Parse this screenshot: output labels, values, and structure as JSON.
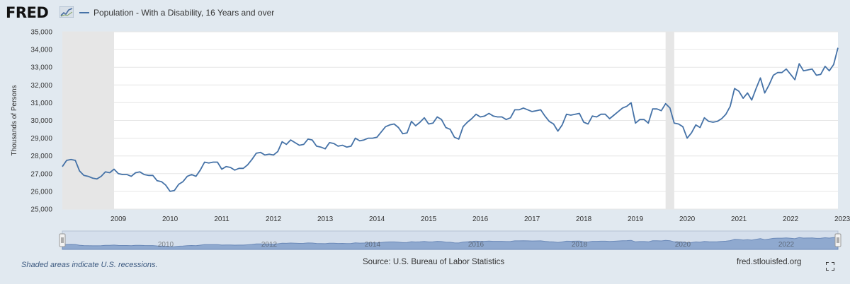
{
  "brand": {
    "logo_text": "FRED",
    "logo_icon": "chart-line-icon"
  },
  "legend": {
    "label": "Population - With a Disability, 16 Years and over",
    "color": "#4572a7"
  },
  "footer": {
    "recession_note": "Shaded areas indicate U.S. recessions.",
    "source": "Source: U.S. Bureau of Labor Statistics",
    "site": "fred.stlouisfed.org",
    "fullscreen_icon": "fullscreen-icon"
  },
  "navigator": {
    "labels": [
      "2010",
      "2012",
      "2014",
      "2016",
      "2018",
      "2020",
      "2022"
    ]
  },
  "chart_data": {
    "type": "line",
    "title": "",
    "xlabel": "",
    "ylabel": "Thousands of Persons",
    "ylim": [
      25000,
      35000
    ],
    "xlim": [
      "2008-06",
      "2023-06"
    ],
    "y_ticks": [
      "25,000",
      "26,000",
      "27,000",
      "28,000",
      "29,000",
      "30,000",
      "31,000",
      "32,000",
      "33,000",
      "34,000",
      "35,000"
    ],
    "x_ticks": [
      "2009",
      "2010",
      "2011",
      "2012",
      "2013",
      "2014",
      "2015",
      "2016",
      "2017",
      "2018",
      "2019",
      "2020",
      "2021",
      "2022",
      "2023"
    ],
    "recessions": [
      [
        "2008-06",
        "2009-06"
      ],
      [
        "2020-02",
        "2020-04"
      ]
    ],
    "grid": "horizontal",
    "colors": {
      "line": "#4572a7",
      "recession": "#e6e6e6"
    },
    "series": [
      {
        "name": "Population - With a Disability, 16 Years and over",
        "x": [
          "2008-06",
          "2008-07",
          "2008-08",
          "2008-09",
          "2008-10",
          "2008-11",
          "2008-12",
          "2009-01",
          "2009-02",
          "2009-03",
          "2009-04",
          "2009-05",
          "2009-06",
          "2009-07",
          "2009-08",
          "2009-09",
          "2009-10",
          "2009-11",
          "2009-12",
          "2010-01",
          "2010-02",
          "2010-03",
          "2010-04",
          "2010-05",
          "2010-06",
          "2010-07",
          "2010-08",
          "2010-09",
          "2010-10",
          "2010-11",
          "2010-12",
          "2011-01",
          "2011-02",
          "2011-03",
          "2011-04",
          "2011-05",
          "2011-06",
          "2011-07",
          "2011-08",
          "2011-09",
          "2011-10",
          "2011-11",
          "2011-12",
          "2012-01",
          "2012-02",
          "2012-03",
          "2012-04",
          "2012-05",
          "2012-06",
          "2012-07",
          "2012-08",
          "2012-09",
          "2012-10",
          "2012-11",
          "2012-12",
          "2013-01",
          "2013-02",
          "2013-03",
          "2013-04",
          "2013-05",
          "2013-06",
          "2013-07",
          "2013-08",
          "2013-09",
          "2013-10",
          "2013-11",
          "2013-12",
          "2014-01",
          "2014-02",
          "2014-03",
          "2014-04",
          "2014-05",
          "2014-06",
          "2014-07",
          "2014-08",
          "2014-09",
          "2014-10",
          "2014-11",
          "2014-12",
          "2015-01",
          "2015-02",
          "2015-03",
          "2015-04",
          "2015-05",
          "2015-06",
          "2015-07",
          "2015-08",
          "2015-09",
          "2015-10",
          "2015-11",
          "2015-12",
          "2016-01",
          "2016-02",
          "2016-03",
          "2016-04",
          "2016-05",
          "2016-06",
          "2016-07",
          "2016-08",
          "2016-09",
          "2016-10",
          "2016-11",
          "2016-12",
          "2017-01",
          "2017-02",
          "2017-03",
          "2017-04",
          "2017-05",
          "2017-06",
          "2017-07",
          "2017-08",
          "2017-09",
          "2017-10",
          "2017-11",
          "2017-12",
          "2018-01",
          "2018-02",
          "2018-03",
          "2018-04",
          "2018-05",
          "2018-06",
          "2018-07",
          "2018-08",
          "2018-09",
          "2018-10",
          "2018-11",
          "2018-12",
          "2019-01",
          "2019-02",
          "2019-03",
          "2019-04",
          "2019-05",
          "2019-06",
          "2019-07",
          "2019-08",
          "2019-09",
          "2019-10",
          "2019-11",
          "2019-12",
          "2020-01",
          "2020-02",
          "2020-03",
          "2020-04",
          "2020-05",
          "2020-06",
          "2020-07",
          "2020-08",
          "2020-09",
          "2020-10",
          "2020-11",
          "2020-12",
          "2021-01",
          "2021-02",
          "2021-03",
          "2021-04",
          "2021-05",
          "2021-06",
          "2021-07",
          "2021-08",
          "2021-09",
          "2021-10",
          "2021-11",
          "2021-12",
          "2022-01",
          "2022-02",
          "2022-03",
          "2022-04",
          "2022-05",
          "2022-06",
          "2022-07",
          "2022-08",
          "2022-09",
          "2022-10",
          "2022-11",
          "2022-12",
          "2023-01",
          "2023-02",
          "2023-03",
          "2023-04",
          "2023-05",
          "2023-06"
        ],
        "values": [
          27400,
          27750,
          27800,
          27750,
          27150,
          26900,
          26850,
          26750,
          26700,
          26850,
          27100,
          27050,
          27250,
          27000,
          26950,
          26950,
          26850,
          27050,
          27100,
          26950,
          26900,
          26900,
          26600,
          26550,
          26350,
          26000,
          26050,
          26400,
          26550,
          26850,
          26950,
          26850,
          27200,
          27650,
          27600,
          27650,
          27650,
          27250,
          27400,
          27350,
          27200,
          27300,
          27300,
          27500,
          27800,
          28150,
          28200,
          28050,
          28100,
          28050,
          28250,
          28800,
          28650,
          28900,
          28750,
          28600,
          28650,
          28950,
          28900,
          28550,
          28500,
          28400,
          28750,
          28700,
          28550,
          28600,
          28500,
          28550,
          29000,
          28850,
          28900,
          29000,
          29000,
          29050,
          29350,
          29650,
          29750,
          29800,
          29600,
          29250,
          29300,
          29950,
          29700,
          29900,
          30150,
          29800,
          29850,
          30200,
          30050,
          29600,
          29500,
          29050,
          28950,
          29650,
          29900,
          30100,
          30350,
          30200,
          30250,
          30400,
          30250,
          30200,
          30200,
          30050,
          30150,
          30600,
          30600,
          30700,
          30600,
          30500,
          30550,
          30600,
          30250,
          29950,
          29800,
          29400,
          29750,
          30350,
          30300,
          30350,
          30400,
          29900,
          29800,
          30250,
          30200,
          30350,
          30350,
          30100,
          30300,
          30500,
          30700,
          30800,
          31000,
          29850,
          30050,
          30050,
          29850,
          30650,
          30650,
          30550,
          30950,
          30700,
          29850,
          29800,
          29650,
          29000,
          29300,
          29750,
          29600,
          30150,
          29950,
          29900,
          29950,
          30100,
          30350,
          30800,
          31800,
          31650,
          31250,
          31550,
          31150,
          31800,
          32400,
          31550,
          32000,
          32550,
          32700,
          32700,
          32900,
          32600,
          32300,
          33200,
          32800,
          32850,
          32900,
          32550,
          32600,
          33050,
          32800,
          33150,
          34100
        ]
      }
    ]
  }
}
